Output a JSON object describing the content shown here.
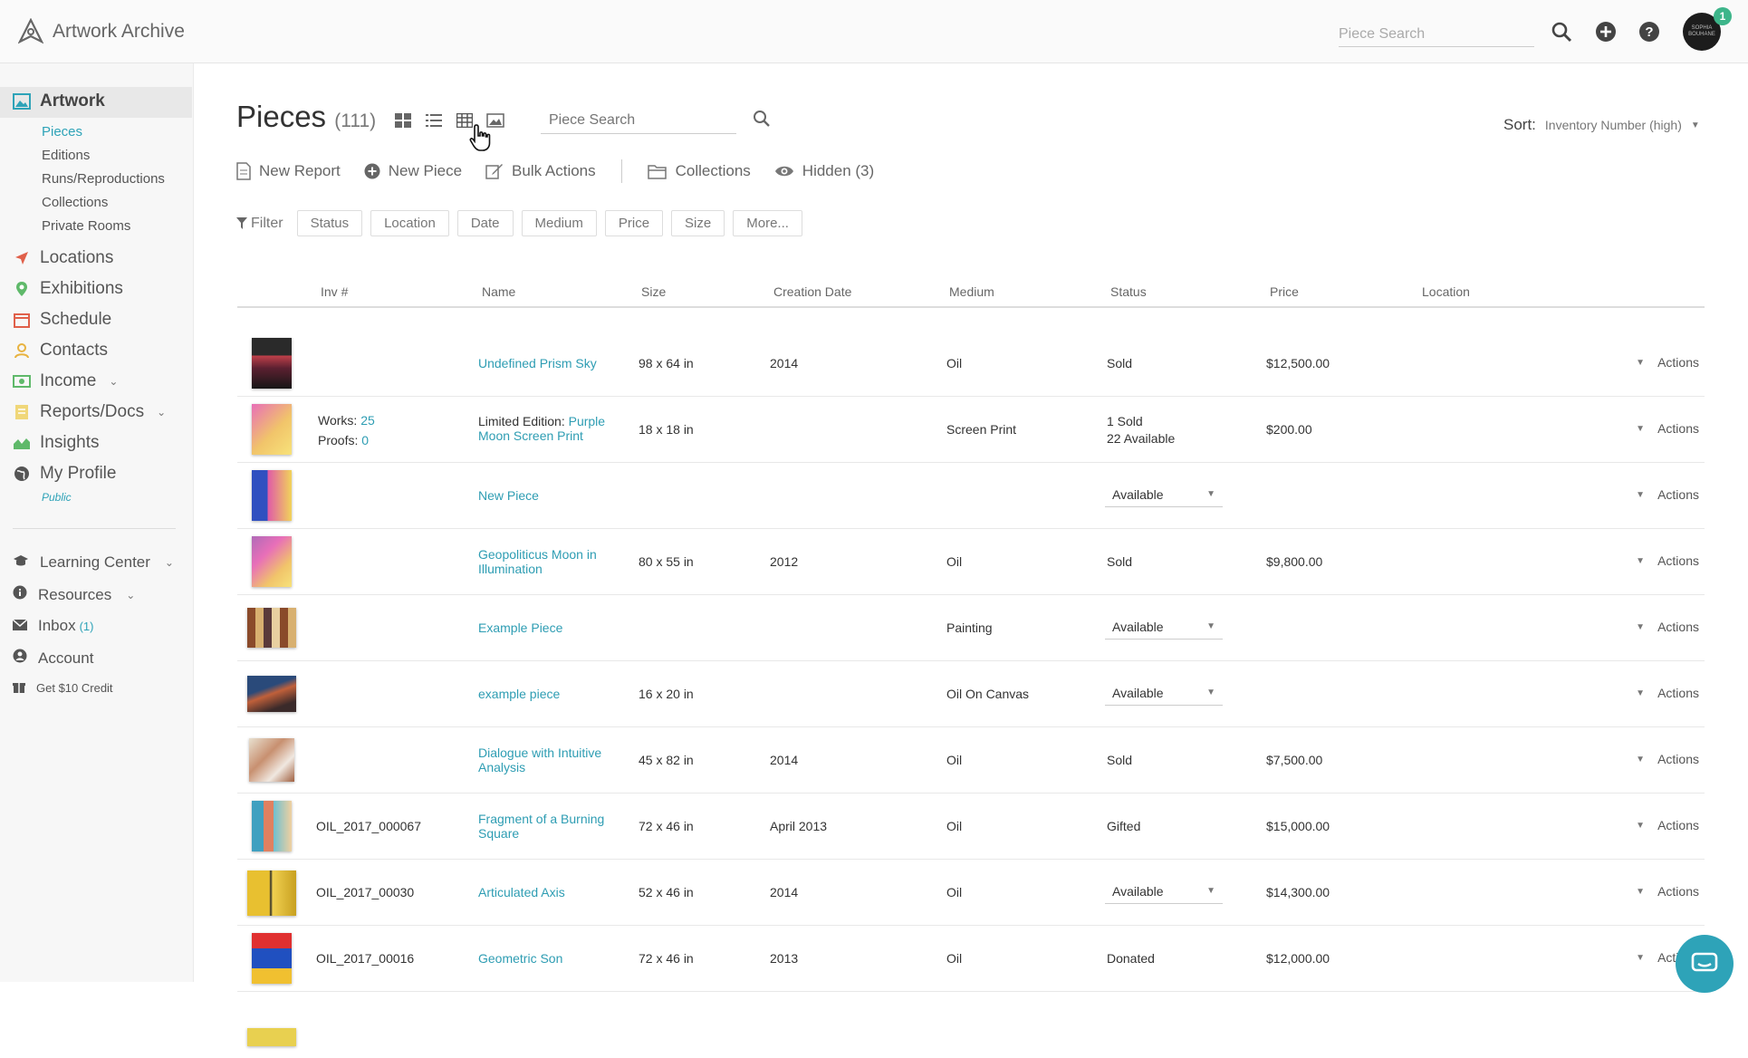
{
  "app": {
    "name": "Artwork Archive",
    "top_search_placeholder": "Piece Search",
    "notif_count": "1",
    "avatar_text": "SOPHIA BOUHANE"
  },
  "sidebar": {
    "artwork": "Artwork",
    "artwork_sub": [
      "Pieces",
      "Editions",
      "Runs/Reproductions",
      "Collections",
      "Private Rooms"
    ],
    "items": [
      "Locations",
      "Exhibitions",
      "Schedule",
      "Contacts",
      "Income",
      "Reports/Docs",
      "Insights",
      "My Profile"
    ],
    "profile_sub": "Public",
    "bottom": [
      "Learning Center",
      "Resources",
      "Inbox",
      "Account",
      "Get $10 Credit"
    ],
    "inbox_count": "(1)"
  },
  "page": {
    "title": "Pieces",
    "count": "(111)",
    "search_placeholder": "Piece Search",
    "sort_label": "Sort:",
    "sort_value": "Inventory Number (high)",
    "actions": [
      "New Report",
      "New Piece",
      "Bulk Actions",
      "Collections",
      "Hidden (3)"
    ],
    "filter_label": "Filter",
    "filters": [
      "Status",
      "Location",
      "Date",
      "Medium",
      "Price",
      "Size",
      "More..."
    ]
  },
  "table": {
    "headers": [
      "Inv #",
      "Name",
      "Size",
      "Creation Date",
      "Medium",
      "Status",
      "Price",
      "Location"
    ],
    "actions_label": "Actions",
    "rows": [
      {
        "inv": "",
        "name": "Undefined Prism Sky",
        "size": "98 x 64 in",
        "date": "2014",
        "medium": "Oil",
        "status": "Sold",
        "price": "$12,500.00"
      },
      {
        "inv": "",
        "works_label": "Works:",
        "works": "25",
        "proofs_label": "Proofs:",
        "proofs": "0",
        "name_prefix": "Limited Edition:",
        "name": "Purple Moon Screen Print",
        "size": "18 x 18 in",
        "date": "",
        "medium": "Screen Print",
        "status": "1 Sold",
        "status2": "22 Available",
        "price": "$200.00"
      },
      {
        "inv": "",
        "name": "New Piece",
        "size": "",
        "date": "",
        "medium": "",
        "status": "Available",
        "price": ""
      },
      {
        "inv": "",
        "name": "Geopoliticus Moon in Illumination",
        "size": "80 x 55 in",
        "date": "2012",
        "medium": "Oil",
        "status": "Sold",
        "price": "$9,800.00"
      },
      {
        "inv": "",
        "name": "Example Piece",
        "size": "",
        "date": "",
        "medium": "Painting",
        "status": "Available",
        "price": ""
      },
      {
        "inv": "",
        "name": "example piece",
        "size": "16 x 20 in",
        "date": "",
        "medium": "Oil On Canvas",
        "status": "Available",
        "price": ""
      },
      {
        "inv": "",
        "name": "Dialogue with Intuitive Analysis",
        "size": "45 x 82 in",
        "date": "2014",
        "medium": "Oil",
        "status": "Sold",
        "price": "$7,500.00"
      },
      {
        "inv": "OIL_2017_000067",
        "name": "Fragment of a Burning Square",
        "size": "72 x 46 in",
        "date": "April 2013",
        "medium": "Oil",
        "status": "Gifted",
        "price": "$15,000.00"
      },
      {
        "inv": "OIL_2017_00030",
        "name": "Articulated Axis",
        "size": "52 x 46 in",
        "date": "2014",
        "medium": "Oil",
        "status": "Available",
        "price": "$14,300.00"
      },
      {
        "inv": "OIL_2017_00016",
        "name": "Geometric Son",
        "size": "72 x 46 in",
        "date": "2013",
        "medium": "Oil",
        "status": "Donated",
        "price": "$12,000.00"
      }
    ]
  },
  "colors": {
    "accent": "#2ea3b8",
    "badge": "#3db58a"
  }
}
